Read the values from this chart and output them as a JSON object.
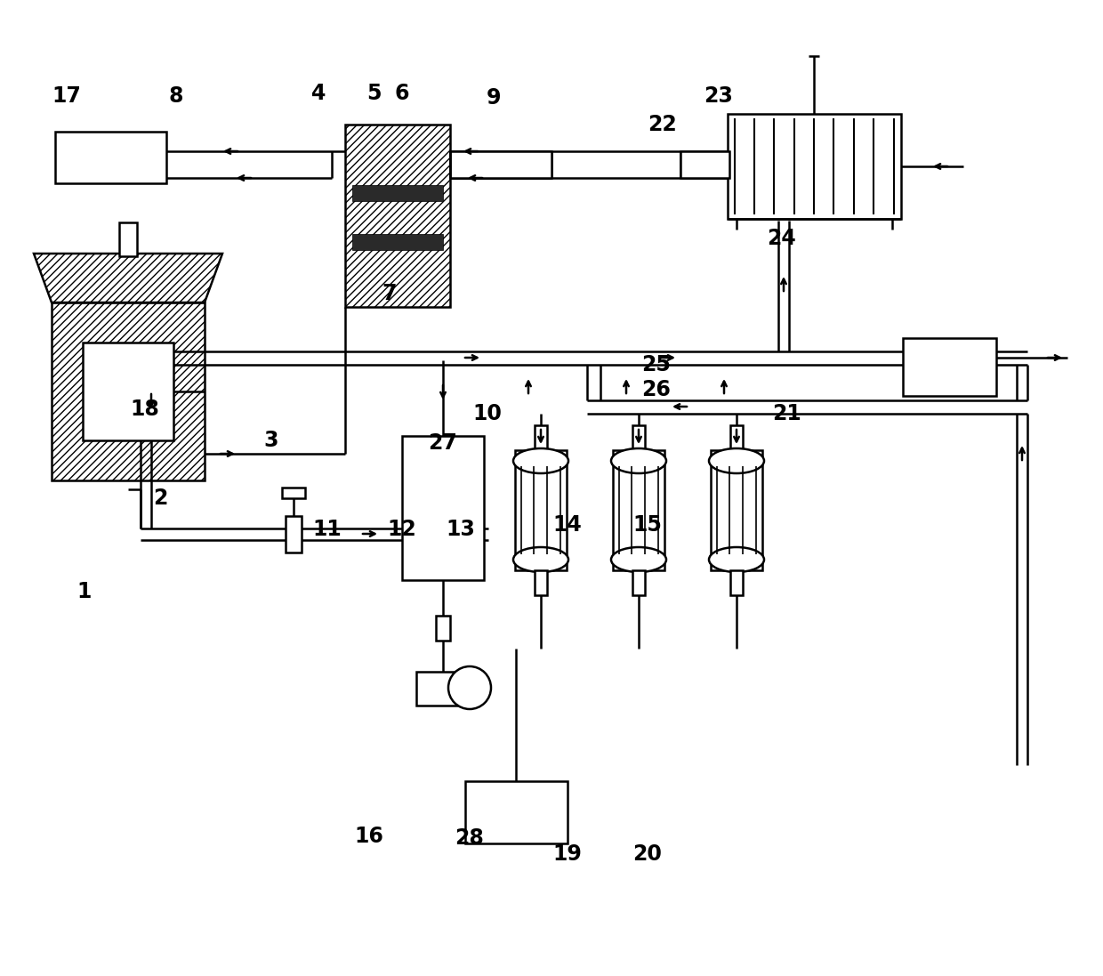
{
  "bg": "#ffffff",
  "lc": "#000000",
  "lw": 1.8,
  "fw": 12.4,
  "fh": 10.97,
  "dpi": 100,
  "labels": [
    [
      "1",
      95,
      665
    ],
    [
      "2",
      180,
      560
    ],
    [
      "3",
      305,
      495
    ],
    [
      "4",
      358,
      105
    ],
    [
      "5",
      420,
      105
    ],
    [
      "6",
      452,
      105
    ],
    [
      "7",
      438,
      330
    ],
    [
      "8",
      198,
      108
    ],
    [
      "9",
      555,
      110
    ],
    [
      "10",
      548,
      465
    ],
    [
      "11",
      368,
      595
    ],
    [
      "12",
      452,
      595
    ],
    [
      "13",
      518,
      595
    ],
    [
      "14",
      638,
      590
    ],
    [
      "15",
      728,
      590
    ],
    [
      "16",
      415,
      940
    ],
    [
      "17",
      75,
      108
    ],
    [
      "18",
      163,
      460
    ],
    [
      "19",
      638,
      960
    ],
    [
      "20",
      728,
      960
    ],
    [
      "21",
      885,
      465
    ],
    [
      "22",
      745,
      140
    ],
    [
      "23",
      808,
      108
    ],
    [
      "24",
      878,
      268
    ],
    [
      "25",
      738,
      410
    ],
    [
      "26",
      738,
      438
    ],
    [
      "27",
      498,
      498
    ],
    [
      "28",
      528,
      942
    ]
  ]
}
